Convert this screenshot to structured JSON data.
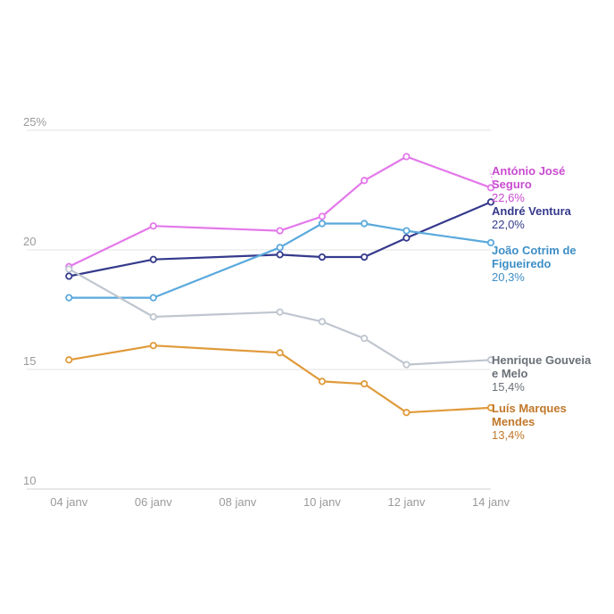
{
  "chart_data": {
    "type": "line",
    "title": "",
    "xlabel": "",
    "ylabel": "",
    "y_unit_label": "25%",
    "x_ticks": [
      "04 janv",
      "06 janv",
      "08 janv",
      "10 janv",
      "12 janv",
      "14 janv"
    ],
    "y_ticks": [
      "10",
      "15",
      "20"
    ],
    "xlim": [
      "2026-01-03",
      "2026-01-14"
    ],
    "ylim": [
      10,
      25
    ],
    "grid": true,
    "series": [
      {
        "name": "António José Seguro",
        "name_lines": [
          "António José",
          "Seguro"
        ],
        "value_label": "22,6%",
        "color": "#e378ea",
        "label_color": "#c94bd1",
        "x": [
          "2026-01-04",
          "2026-01-06",
          "2026-01-09",
          "2026-01-10",
          "2026-01-11",
          "2026-01-12",
          "2026-01-14"
        ],
        "values": [
          19.3,
          21.0,
          20.8,
          21.4,
          22.9,
          23.9,
          22.6
        ]
      },
      {
        "name": "André Ventura",
        "name_lines": [
          "André Ventura"
        ],
        "value_label": "22,0%",
        "color": "#353a8c",
        "label_color": "#353a8c",
        "x": [
          "2026-01-04",
          "2026-01-06",
          "2026-01-09",
          "2026-01-10",
          "2026-01-11",
          "2026-01-12",
          "2026-01-14"
        ],
        "values": [
          18.9,
          19.6,
          19.8,
          19.7,
          19.7,
          20.5,
          22.0
        ]
      },
      {
        "name": "João Cotrim de Figueiredo",
        "name_lines": [
          "João Cotrim de",
          "Figueiredo"
        ],
        "value_label": "20,3%",
        "color": "#5aa9dc",
        "label_color": "#3e8fc7",
        "x": [
          "2026-01-04",
          "2026-01-06",
          "2026-01-09",
          "2026-01-10",
          "2026-01-11",
          "2026-01-12",
          "2026-01-14"
        ],
        "values": [
          18.0,
          18.0,
          20.1,
          21.1,
          21.1,
          20.8,
          20.3
        ]
      },
      {
        "name": "Henrique Gouveia e Melo",
        "name_lines": [
          "Henrique Gouveia",
          "e Melo"
        ],
        "value_label": "15,4%",
        "color": "#bfc6cf",
        "label_color": "#6b7078",
        "x": [
          "2026-01-04",
          "2026-01-06",
          "2026-01-09",
          "2026-01-10",
          "2026-01-11",
          "2026-01-12",
          "2026-01-14"
        ],
        "values": [
          19.2,
          17.2,
          17.4,
          17.0,
          16.3,
          15.2,
          15.4
        ]
      },
      {
        "name": "Luís Marques Mendes",
        "name_lines": [
          "Luís Marques",
          "Mendes"
        ],
        "value_label": "13,4%",
        "color": "#e09a3a",
        "label_color": "#c0782a",
        "x": [
          "2026-01-04",
          "2026-01-06",
          "2026-01-09",
          "2026-01-10",
          "2026-01-11",
          "2026-01-12",
          "2026-01-14"
        ],
        "values": [
          15.4,
          16.0,
          15.7,
          14.5,
          14.4,
          13.2,
          13.4
        ]
      }
    ]
  }
}
